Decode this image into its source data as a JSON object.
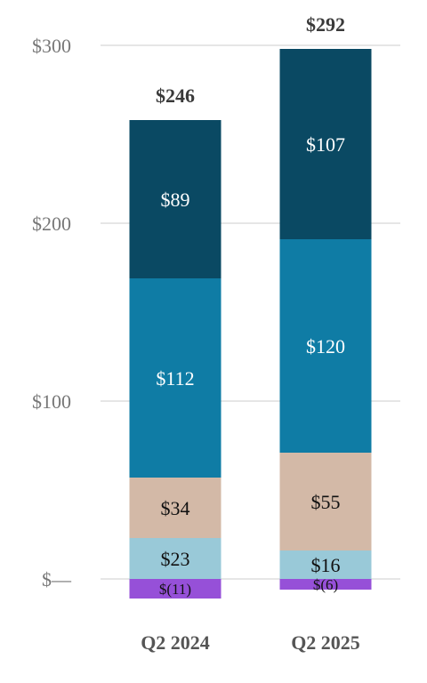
{
  "chart_data": {
    "type": "bar",
    "stacked": true,
    "categories": [
      "Q2 2024",
      "Q2 2025"
    ],
    "series": [
      {
        "values": [
          -11,
          -6
        ],
        "labels": [
          "$(11)",
          "$(6)"
        ],
        "color": "#9650d8"
      },
      {
        "values": [
          23,
          16
        ],
        "labels": [
          "$23",
          "$16"
        ],
        "color": "#99c9d8"
      },
      {
        "values": [
          34,
          55
        ],
        "labels": [
          "$34",
          "$55"
        ],
        "color": "#d3b9a7"
      },
      {
        "values": [
          112,
          120
        ],
        "labels": [
          "$112",
          "$120"
        ],
        "color": "#0f7ca5"
      },
      {
        "values": [
          89,
          107
        ],
        "labels": [
          "$89",
          "$107"
        ],
        "color": "#0a4963"
      }
    ],
    "totals": [
      "$246",
      "$292"
    ],
    "yticks": [
      0,
      100,
      200,
      300
    ],
    "ytick_labels": [
      "$—",
      "$100",
      "$200",
      "$300"
    ],
    "ylim": [
      -11,
      300
    ],
    "grid": true,
    "title": "",
    "xlabel": "",
    "ylabel": ""
  }
}
